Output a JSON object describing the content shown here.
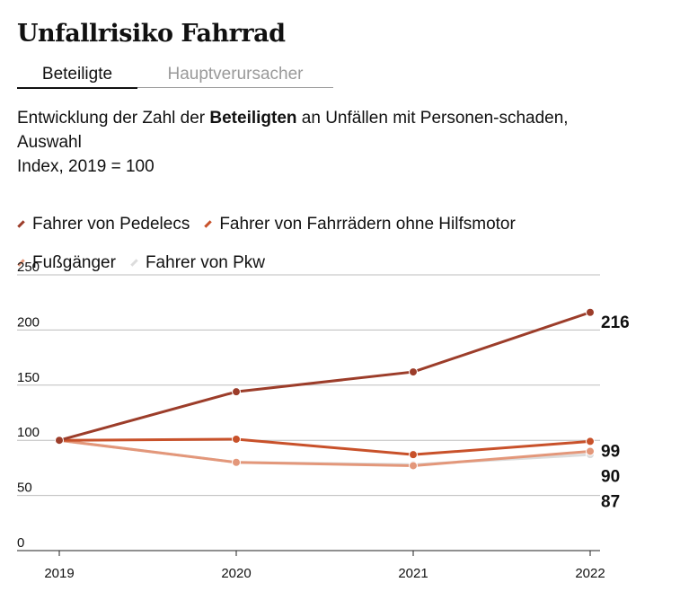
{
  "title": "Unfallrisiko Fahrrad",
  "tabs": [
    {
      "label": "Beteiligte",
      "active": true
    },
    {
      "label": "Hauptverursacher",
      "active": false
    }
  ],
  "subtitle": {
    "pre": "Entwicklung der Zahl der ",
    "bold": "Beteiligten",
    "post": " an Unfällen mit Personen-schaden, Auswahl",
    "line2": "Index, 2019 = 100"
  },
  "legend": [
    {
      "label": "Fahrer von Pedelecs",
      "color": "#9c3d2a"
    },
    {
      "label": "Fahrer von Fahrrädern ohne Hilfsmotor",
      "color": "#c8512a"
    },
    {
      "label": "Fußgänger",
      "color": "#e3977a"
    },
    {
      "label": "Fahrer von Pkw",
      "color": "#dcdcdc"
    }
  ],
  "chart_data": {
    "type": "line",
    "x": [
      "2019",
      "2020",
      "2021",
      "2022"
    ],
    "ylim": [
      0,
      250
    ],
    "yticks": [
      0,
      50,
      100,
      150,
      200,
      250
    ],
    "grid": true,
    "series": [
      {
        "name": "Fahrer von Pkw",
        "color": "#dcdcdc",
        "values": [
          100,
          80,
          78,
          87
        ],
        "end_label": "87"
      },
      {
        "name": "Fußgänger",
        "color": "#e3977a",
        "values": [
          100,
          80,
          77,
          90
        ],
        "end_label": "90"
      },
      {
        "name": "Fahrer von Fahrrädern ohne Hilfsmotor",
        "color": "#c8512a",
        "values": [
          100,
          101,
          87,
          99
        ],
        "end_label": "99"
      },
      {
        "name": "Fahrer von Pedelecs",
        "color": "#9c3d2a",
        "values": [
          100,
          144,
          162,
          216
        ],
        "end_label": "216"
      }
    ]
  }
}
